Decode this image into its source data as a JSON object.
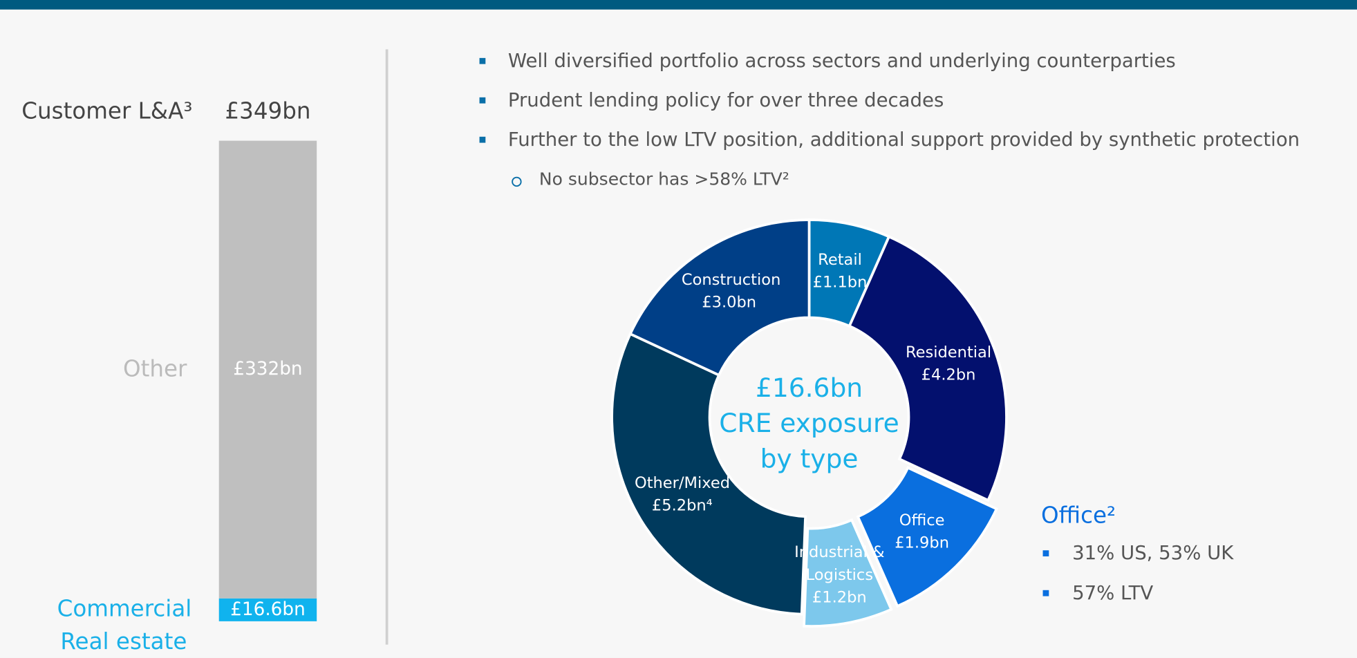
{
  "bullets": [
    "Well diversified portfolio across sectors and underlying counterparties",
    "Prudent lending policy for over three decades",
    "Further to the low LTV position, additional support provided by synthetic protection"
  ],
  "sub_bullet": "No subsector has >58% LTV²",
  "office": {
    "title": "Office²",
    "bullets": [
      "31% US, 53% UK",
      "57% LTV"
    ]
  },
  "chart_data": [
    {
      "type": "bar",
      "stacked": true,
      "title": "Customer L&A³",
      "total": 349,
      "total_label": "£349bn",
      "series": [
        {
          "name": "Commercial Real estate",
          "color": "#10b3ee",
          "values": [
            16.6
          ],
          "value_labels": [
            "£16.6bn"
          ]
        },
        {
          "name": "Other",
          "color": "#bfbfbf",
          "values": [
            332
          ],
          "value_labels": [
            "£332bn"
          ]
        }
      ]
    },
    {
      "type": "donut",
      "center_label": [
        "£16.6bn",
        "CRE exposure",
        "by type"
      ],
      "categories": [
        "Retail",
        "Residential",
        "Office",
        "Industrial & Logistics",
        "Other/Mixed",
        "Construction"
      ],
      "values": [
        1.1,
        4.2,
        1.9,
        1.2,
        5.2,
        3.0
      ],
      "value_labels": [
        "£1.1bn",
        "£4.2bn",
        "£1.9bn",
        "£1.2bn",
        "£5.2bn⁴",
        "£3.0bn"
      ],
      "colors": [
        "#0077b6",
        "#03106e",
        "#0a6fdf",
        "#7dc8ec",
        "#003a5d",
        "#003f87"
      ],
      "exploded": [
        false,
        false,
        true,
        true,
        false,
        false
      ]
    }
  ]
}
